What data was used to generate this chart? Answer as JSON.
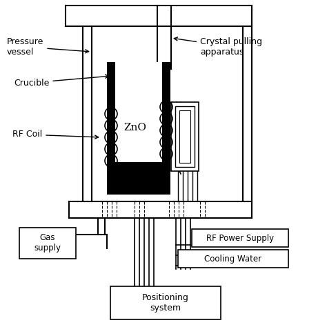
{
  "bg_color": "#ffffff",
  "line_color": "#000000",
  "labels": {
    "pressure_vessel": "Pressure\nvessel",
    "crystal_pulling": "Crystal pulling\napparatus",
    "crucible": "Crucible",
    "rf_coil": "RF Coil",
    "zno": "ZnO",
    "gas_supply": "Gas\nsupply",
    "rf_power": "RF Power Supply",
    "cooling_water": "Cooling Water",
    "positioning": "Positioning\nsystem"
  },
  "figsize": [
    4.74,
    4.74
  ],
  "dpi": 100
}
